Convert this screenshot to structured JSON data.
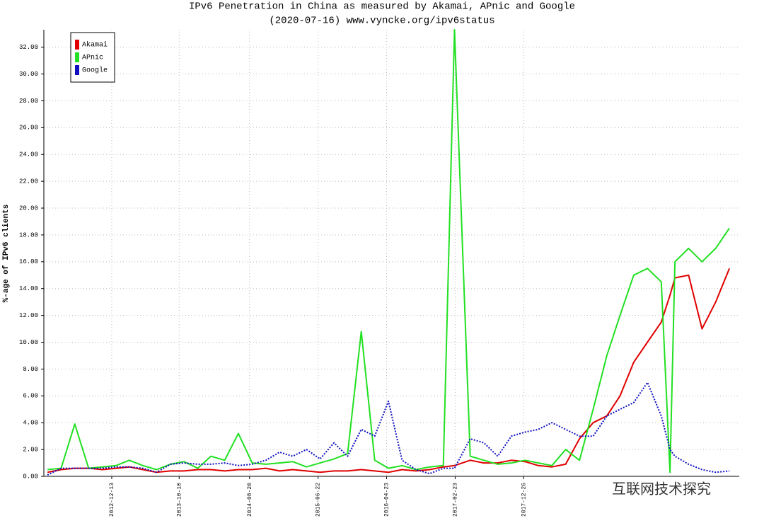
{
  "chart_data": {
    "type": "line",
    "title": "IPv6 Penetration in China as measured by Akamai, APnic and Google",
    "subtitle": "(2020-07-16) www.vyncke.org/ipv6status",
    "y_label": "%-age of IPv6 clients",
    "watermark": "互联网技术探究",
    "x": [
      "2012-03-01",
      "2012-05-01",
      "2012-07-01",
      "2012-09-01",
      "2012-11-01",
      "2013-01-01",
      "2013-03-01",
      "2013-05-01",
      "2013-07-01",
      "2013-09-01",
      "2013-11-01",
      "2014-01-01",
      "2014-03-01",
      "2014-05-01",
      "2014-07-01",
      "2014-09-01",
      "2014-11-01",
      "2015-01-01",
      "2015-03-01",
      "2015-05-01",
      "2015-07-01",
      "2015-09-01",
      "2015-11-01",
      "2016-01-01",
      "2016-03-01",
      "2016-05-01",
      "2016-07-01",
      "2016-09-01",
      "2016-11-01",
      "2017-01-01",
      "2017-02-20",
      "2017-05-01",
      "2017-07-01",
      "2017-09-01",
      "2017-11-01",
      "2018-01-01",
      "2018-03-01",
      "2018-05-01",
      "2018-07-01",
      "2018-09-01",
      "2018-11-01",
      "2019-01-01",
      "2019-03-01",
      "2019-05-01",
      "2019-07-01",
      "2019-09-01",
      "2019-10-10",
      "2019-11-01",
      "2020-01-01",
      "2020-03-01",
      "2020-05-01",
      "2020-07-01"
    ],
    "series": [
      {
        "name": "Akamai",
        "color": "#e00000",
        "dash": false,
        "values": [
          0.3,
          0.5,
          0.6,
          0.6,
          0.5,
          0.6,
          0.7,
          0.5,
          0.3,
          0.4,
          0.4,
          0.5,
          0.5,
          0.4,
          0.5,
          0.5,
          0.6,
          0.4,
          0.5,
          0.4,
          0.3,
          0.4,
          0.4,
          0.5,
          0.4,
          0.3,
          0.5,
          0.4,
          0.5,
          0.7,
          0.8,
          1.2,
          1.0,
          1.0,
          1.2,
          1.1,
          0.8,
          0.7,
          0.9,
          2.8,
          4.0,
          4.5,
          6.0,
          8.5,
          10.0,
          11.5,
          13.5,
          14.8,
          15.0,
          11.0,
          13.0,
          15.5
        ]
      },
      {
        "name": "APnic",
        "color": "#22e022",
        "dash": false,
        "values": [
          0.5,
          0.6,
          3.9,
          0.6,
          0.7,
          0.8,
          1.2,
          0.8,
          0.5,
          0.9,
          1.1,
          0.6,
          1.5,
          1.2,
          3.2,
          1.0,
          0.9,
          1.0,
          1.1,
          0.7,
          1.0,
          1.3,
          1.7,
          10.8,
          1.2,
          0.6,
          0.8,
          0.5,
          0.7,
          0.8,
          33.3,
          1.5,
          1.2,
          0.9,
          1.0,
          1.2,
          1.0,
          0.8,
          2.0,
          1.2,
          5.0,
          9.0,
          12.0,
          15.0,
          15.5,
          14.5,
          0.3,
          16.0,
          17.0,
          16.0,
          17.0,
          18.5
        ]
      },
      {
        "name": "Google",
        "color": "#1010c0",
        "dash": true,
        "values": [
          0.1,
          0.6,
          0.6,
          0.6,
          0.6,
          0.7,
          0.7,
          0.6,
          0.3,
          0.9,
          1.0,
          0.9,
          0.9,
          1.0,
          0.8,
          0.9,
          1.2,
          1.8,
          1.5,
          2.0,
          1.3,
          2.5,
          1.5,
          3.5,
          3.0,
          5.6,
          1.2,
          0.5,
          0.2,
          0.6,
          0.6,
          2.8,
          2.5,
          1.5,
          3.0,
          3.3,
          3.5,
          4.0,
          3.5,
          3.0,
          3.0,
          4.5,
          5.0,
          5.5,
          7.0,
          4.5,
          2.0,
          1.5,
          0.9,
          0.5,
          0.3,
          0.4
        ]
      }
    ],
    "xlim": [
      "2012-02-14",
      "2020-08-14"
    ],
    "xticks": [
      "2012-12-13",
      "2013-10-10",
      "2014-08-20",
      "2015-06-22",
      "2016-04-23",
      "2017-02-23",
      "2017-12-26"
    ],
    "ylim": [
      0,
      33.3
    ],
    "yticks": [
      {
        "value": 0,
        "label": "0.00"
      },
      {
        "value": 2,
        "label": "2.00"
      },
      {
        "value": 4,
        "label": "4.00"
      },
      {
        "value": 6,
        "label": "6.00"
      },
      {
        "value": 8,
        "label": "8.00"
      },
      {
        "value": 10,
        "label": "10.00"
      },
      {
        "value": 12,
        "label": "12.00"
      },
      {
        "value": 14,
        "label": "14.00"
      },
      {
        "value": 16,
        "label": "16.00"
      },
      {
        "value": 18,
        "label": "18.00"
      },
      {
        "value": 20,
        "label": "20.00"
      },
      {
        "value": 22,
        "label": "22.00"
      },
      {
        "value": 24,
        "label": "24.00"
      },
      {
        "value": 26,
        "label": "26.00"
      },
      {
        "value": 28,
        "label": "28.00"
      },
      {
        "value": 30,
        "label": "30.00"
      },
      {
        "value": 32,
        "label": "32.00"
      }
    ],
    "grid": true,
    "legend": "top-left"
  }
}
